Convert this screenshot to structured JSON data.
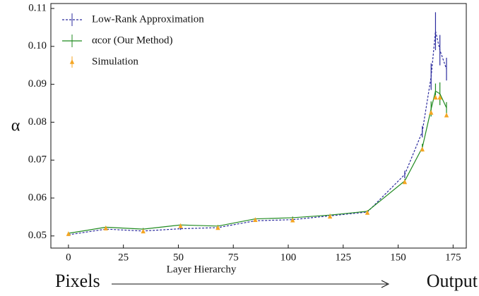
{
  "chart_data": {
    "type": "line",
    "xlabel": "Layer  Hierarchy",
    "ylabel": "α",
    "left_caption": "Pixels",
    "right_caption": "Output",
    "x": [
      0,
      17,
      34,
      51,
      68,
      85,
      102,
      119,
      136,
      153,
      161,
      165,
      167,
      169,
      172
    ],
    "xlim": [
      -8,
      181
    ],
    "ylim": [
      0.0468,
      0.1113
    ],
    "xticks": [
      0,
      25,
      50,
      75,
      100,
      125,
      150,
      175
    ],
    "yticks": [
      0.05,
      0.06,
      0.07,
      0.08,
      0.09,
      {
        "value": 0.1,
        "label": "0.10"
      },
      0.11
    ],
    "legend": "upper left",
    "series": [
      {
        "name": "Low-Rank Approximation",
        "color": "#2b2b9e",
        "style": "dashed",
        "values": [
          0.0503,
          0.0518,
          0.0513,
          0.0519,
          0.0522,
          0.054,
          0.0543,
          0.0553,
          0.0563,
          0.0662,
          0.0775,
          0.092,
          0.104,
          0.099,
          0.094
        ],
        "errors": [
          0.0003,
          0.0003,
          0.0003,
          0.0003,
          0.0003,
          0.0003,
          0.0003,
          0.0003,
          0.0003,
          0.001,
          0.0015,
          0.0035,
          0.005,
          0.004,
          0.003
        ]
      },
      {
        "name": "αcor (Our Method)",
        "color": "#1f8a1f",
        "style": "solid",
        "values": [
          0.0507,
          0.0523,
          0.0518,
          0.0529,
          0.0526,
          0.0545,
          0.0548,
          0.0555,
          0.0565,
          0.0645,
          0.0733,
          0.0835,
          0.0882,
          0.0875,
          0.0838
        ],
        "errors": [
          0.0003,
          0.0003,
          0.0003,
          0.0003,
          0.0003,
          0.0003,
          0.0003,
          0.0003,
          0.0003,
          0.0005,
          0.001,
          0.002,
          0.002,
          0.003,
          0.0015
        ]
      },
      {
        "name": "Simulation",
        "color": "#f5a623",
        "style": "markers",
        "values": [
          0.0505,
          0.052,
          0.0512,
          0.0526,
          0.0521,
          0.0542,
          0.0541,
          0.0551,
          0.0561,
          0.0642,
          0.0728,
          0.0825,
          0.0865,
          0.0865,
          0.0818
        ]
      }
    ]
  }
}
